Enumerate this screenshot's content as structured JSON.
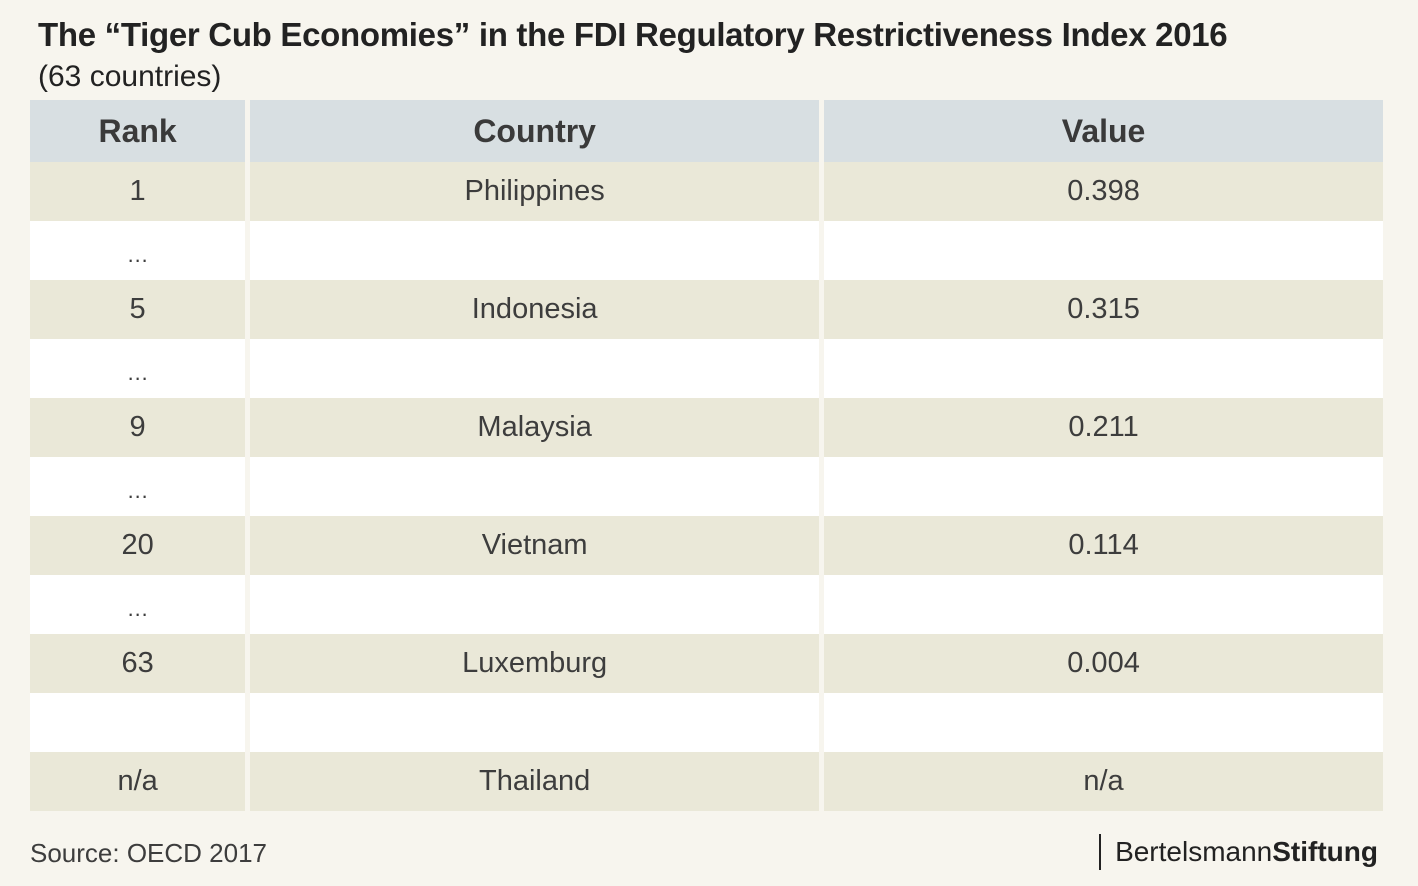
{
  "title": "The “Tiger Cub Economies” in the FDI Regulatory Restrictiveness Index 2016",
  "subtitle": "(63 countries)",
  "columns": {
    "rank": "Rank",
    "country": "Country",
    "value": "Value"
  },
  "rows": [
    {
      "rank": "1",
      "country": "Philippines",
      "value": "0.398"
    },
    {
      "rank": "…",
      "country": "",
      "value": ""
    },
    {
      "rank": "5",
      "country": "Indonesia",
      "value": "0.315"
    },
    {
      "rank": "…",
      "country": "",
      "value": ""
    },
    {
      "rank": "9",
      "country": "Malaysia",
      "value": "0.211"
    },
    {
      "rank": "…",
      "country": "",
      "value": ""
    },
    {
      "rank": "20",
      "country": "Vietnam",
      "value": "0.114"
    },
    {
      "rank": "…",
      "country": "",
      "value": ""
    },
    {
      "rank": "63",
      "country": "Luxemburg",
      "value": "0.004"
    },
    {
      "rank": "",
      "country": "",
      "value": ""
    },
    {
      "rank": "n/a",
      "country": "Thailand",
      "value": "n/a"
    }
  ],
  "source": "Source: OECD 2017",
  "brand": {
    "part1": "Bertelsmann",
    "part2": "Stiftung"
  }
}
